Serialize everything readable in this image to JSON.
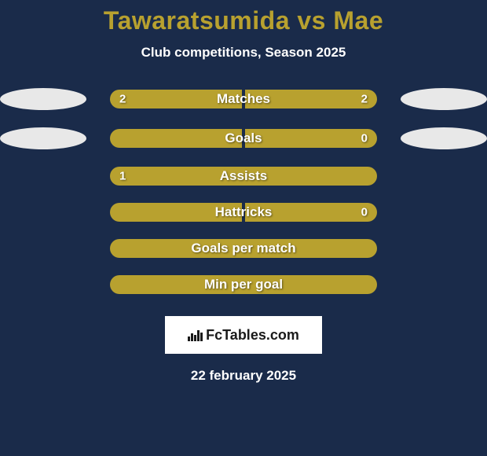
{
  "title": "Tawaratsumida vs Mae",
  "subtitle": "Club competitions, Season 2025",
  "background_color": "#1a2b4a",
  "bar_color": "#b8a12f",
  "title_color": "#b8a12f",
  "text_color": "#ffffff",
  "stats": [
    {
      "label": "Matches",
      "left_value": "2",
      "right_value": "2",
      "left_pct": 50,
      "right_pct": 50,
      "show_left_photo": true,
      "show_right_photo": true,
      "show_divider": true
    },
    {
      "label": "Goals",
      "left_value": "",
      "right_value": "0",
      "left_pct": 50,
      "right_pct": 50,
      "show_left_photo": true,
      "show_right_photo": true,
      "show_divider": true
    },
    {
      "label": "Assists",
      "left_value": "1",
      "right_value": "",
      "left_pct": 100,
      "right_pct": 0,
      "show_left_photo": false,
      "show_right_photo": false,
      "show_divider": false
    },
    {
      "label": "Hattricks",
      "left_value": "",
      "right_value": "0",
      "left_pct": 50,
      "right_pct": 50,
      "show_left_photo": false,
      "show_right_photo": false,
      "show_divider": true
    },
    {
      "label": "Goals per match",
      "left_value": "",
      "right_value": "",
      "left_pct": 100,
      "right_pct": 0,
      "show_left_photo": false,
      "show_right_photo": false,
      "show_divider": false
    },
    {
      "label": "Min per goal",
      "left_value": "",
      "right_value": "",
      "left_pct": 100,
      "right_pct": 0,
      "show_left_photo": false,
      "show_right_photo": false,
      "show_divider": false
    }
  ],
  "watermark": "FcTables.com",
  "date": "22 february 2025"
}
